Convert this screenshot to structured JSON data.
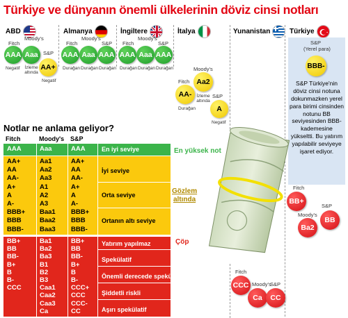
{
  "title": "Türkiye ve dünyanın önemli ülkelerinin döviz cinsi notları",
  "colors": {
    "title": "#e30613",
    "green": "#3bb44a",
    "yellow": "#fbc90d",
    "red": "#e1261c",
    "turkey_box": "#d9e5f3"
  },
  "countries": [
    {
      "name": "ABD",
      "flag_icon": "usa-flag-icon"
    },
    {
      "name": "Almanya",
      "flag_icon": "germany-flag-icon"
    },
    {
      "name": "İngiltere",
      "flag_icon": "uk-flag-icon"
    },
    {
      "name": "İtalya",
      "flag_icon": "italy-flag-icon"
    },
    {
      "name": "Yunanistan",
      "flag_icon": "greece-flag-icon"
    },
    {
      "name": "Türkiye",
      "flag_icon": "turkey-flag-icon"
    }
  ],
  "ratings": {
    "abd": {
      "fitch": "Fitch",
      "moodys": "Moody's",
      "sp": "S&P",
      "fitch_value": "AAA",
      "moodys_value": "Aaa",
      "sp_value": "AA+",
      "fitch_note": "Negatif",
      "moodys_note": "İzleme altında",
      "sp_note": "Negatif"
    },
    "almanya": {
      "fitch": "Fitch",
      "moodys": "Moody's",
      "sp": "S&P",
      "fitch_value": "AAA",
      "moodys_value": "Aaa",
      "sp_value": "AAA",
      "fitch_note": "Durağan",
      "moodys_note": "Durağan",
      "sp_note": "Durağan"
    },
    "ingiltere": {
      "fitch": "Fitch",
      "moodys": "Moody's",
      "sp": "S&P",
      "fitch_value": "AAA",
      "moodys_value": "Aaa",
      "sp_value": "AAA",
      "fitch_note": "Durağan",
      "moodys_note": "Durağan",
      "sp_note": "Durağan"
    },
    "italya": {
      "fitch": "Fitch",
      "moodys": "Moody's",
      "sp": "S&P",
      "fitch_value": "AA-",
      "moodys_value": "Aa2",
      "sp_value": "A",
      "fitch_note": "Durağan",
      "moodys_note": "İzleme altında",
      "sp_note": "Negatif"
    },
    "yunanistan": {
      "fitch": "Fitch",
      "moodys": "Moody's",
      "sp": "S&P",
      "fitch_value": "CCC",
      "moodys_value": "Ca",
      "sp_value": "CC"
    },
    "turkiye": {
      "sp_local": "S&P",
      "sp_local_sub": "(Yerel para)",
      "sp_local_value": "BBB-",
      "description": "S&P Türkiye'nin döviz cinsi notuna dokunmazken yerel para birimi cinsinden notunu BB seviyesinden BBB- kademesine yükseltti. Bu yatırım yapılabilir seviyeye işaret ediyor.",
      "fitch": "Fitch",
      "moodys": "Moody's",
      "sp": "S&P",
      "fitch_value": "BB+",
      "moodys_value": "Ba2",
      "sp_value": "BB"
    }
  },
  "legend": {
    "subtitle": "Notlar ne anlama geliyor?",
    "headers": [
      "Fitch",
      "Moody's",
      "S&P"
    ],
    "top": {
      "fitch": "AAA",
      "moodys": "Aaa",
      "sp": "AAA",
      "meaning": "En iyi seviye",
      "side": "En yüksek not"
    },
    "yellow_rows": [
      [
        "AA+",
        "Aa1",
        "AA+"
      ],
      [
        "AA",
        "Aa2",
        "AA"
      ],
      [
        "AA-",
        "Aa3",
        "AA-"
      ],
      [
        "A+",
        "A1",
        "A+"
      ],
      [
        "A",
        "A2",
        "A"
      ],
      [
        "A-",
        "A3",
        "A-"
      ],
      [
        "BBB+",
        "Baa1",
        "BBB+"
      ],
      [
        "BBB",
        "Baa2",
        "BBB"
      ],
      [
        "BBB-",
        "Baa3",
        "BBB-"
      ]
    ],
    "yellow_meanings": [
      "İyi seviye",
      "Orta seviye",
      "Ortanın altı seviye"
    ],
    "yellow_side_1": "Gözlem",
    "yellow_side_2": "altında",
    "red_rows": [
      [
        "BB+",
        "Ba1",
        "BB+"
      ],
      [
        "BB",
        "Ba2",
        "BB"
      ],
      [
        "BB-",
        "Ba3",
        "BB-"
      ],
      [
        "B+",
        "B1",
        "B+"
      ],
      [
        "B",
        "B2",
        "B"
      ],
      [
        "B-",
        "B3",
        "B-"
      ],
      [
        "CCC",
        "Caa1",
        "CCC+"
      ],
      [
        "",
        "Caa2",
        "CCC"
      ],
      [
        "",
        "Caa3",
        "CCC-"
      ],
      [
        "",
        "Ca",
        "CC"
      ]
    ],
    "red_meanings": [
      "Yatırım yapılmaz",
      "Spekülatif",
      "Önemli derecede spekülatif",
      "Şiddetli riskli",
      "Aşırı spekülatif"
    ],
    "red_side": "Çöp"
  }
}
